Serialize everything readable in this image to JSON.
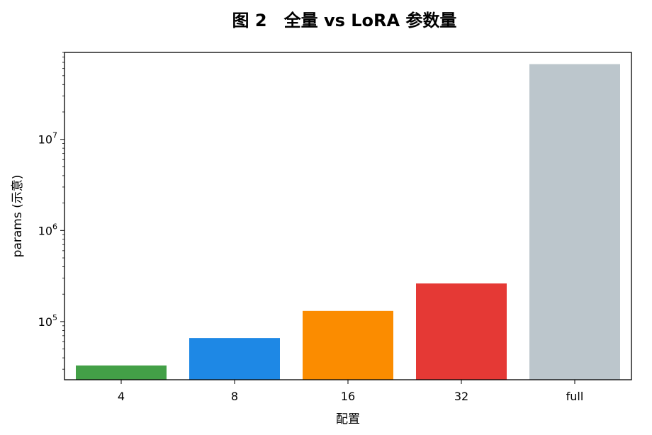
{
  "chart_data": {
    "type": "bar",
    "title": "图 2　全量 vs LoRA 参数量",
    "xlabel": "配置",
    "ylabel": "params (示意)",
    "yscale": "log",
    "ylim": [
      23000,
      90000000
    ],
    "categories": [
      "4",
      "8",
      "16",
      "32",
      "full"
    ],
    "values": [
      33000,
      66000,
      131000,
      262000,
      67000000
    ],
    "colors": [
      "#43a047",
      "#1e88e5",
      "#fb8c00",
      "#e53935",
      "#bcc6cc"
    ],
    "y_ticks": [
      {
        "value": 100000,
        "base": "10",
        "exp": "5"
      },
      {
        "value": 1000000,
        "base": "10",
        "exp": "6"
      },
      {
        "value": 10000000,
        "base": "10",
        "exp": "7"
      }
    ],
    "grid": false,
    "legend": "none"
  }
}
